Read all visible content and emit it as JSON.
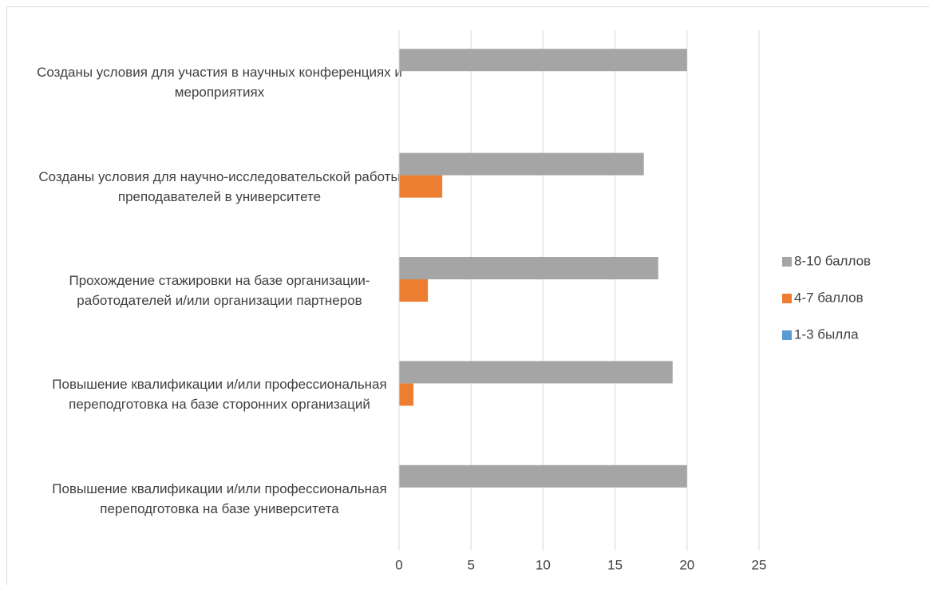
{
  "chart_data": {
    "type": "bar",
    "orientation": "horizontal",
    "categories": [
      "Созданы условия для участия в научных конференциях и мероприятиях",
      "Созданы условия для научно-исследовательской работы преподавателей в университете",
      "Прохождение стажировки на базе организации-работодателей и/или организации партнеров",
      "Повышение квалификации и/или профессиональная переподготовка на базе сторонних организаций",
      "Повышение квалификации и/или профессиональная переподготовка на базе университета"
    ],
    "series": [
      {
        "name": "8-10 баллов",
        "color": "#a5a5a5",
        "values": [
          20,
          17,
          18,
          19,
          20
        ]
      },
      {
        "name": "4-7 баллов",
        "color": "#ed7d31",
        "values": [
          0,
          3,
          2,
          1,
          0
        ]
      },
      {
        "name": "1-3 былла",
        "color": "#5b9bd5",
        "values": [
          0,
          0,
          0,
          0,
          0
        ]
      }
    ],
    "xlim": [
      0,
      25
    ],
    "xticks": [
      0,
      5,
      10,
      15,
      20,
      25
    ],
    "grid": true,
    "legend": "right"
  }
}
